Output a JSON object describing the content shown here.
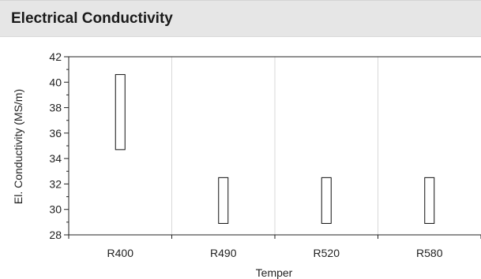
{
  "header": {
    "title": "Electrical Conductivity"
  },
  "chart_data": {
    "type": "bar",
    "subtype": "floating-range",
    "title": "Electrical Conductivity",
    "xlabel": "Temper",
    "ylabel": "El. Conductivity (MS/m)",
    "categories": [
      "R400",
      "R490",
      "R520",
      "R580"
    ],
    "ranges": [
      {
        "category": "R400",
        "min": 34.7,
        "max": 40.6
      },
      {
        "category": "R490",
        "min": 28.9,
        "max": 32.5
      },
      {
        "category": "R520",
        "min": 28.9,
        "max": 32.5
      },
      {
        "category": "R580",
        "min": 28.9,
        "max": 32.5
      }
    ],
    "ylim": [
      28,
      42
    ],
    "yticks": [
      28,
      30,
      32,
      34,
      36,
      38,
      40,
      42
    ],
    "grid": "vertical",
    "legend": "none",
    "colors": {
      "bar_fill": "#ffffff",
      "bar_stroke": "#111111",
      "grid": "#d8d8d8",
      "axis": "#222222"
    }
  }
}
